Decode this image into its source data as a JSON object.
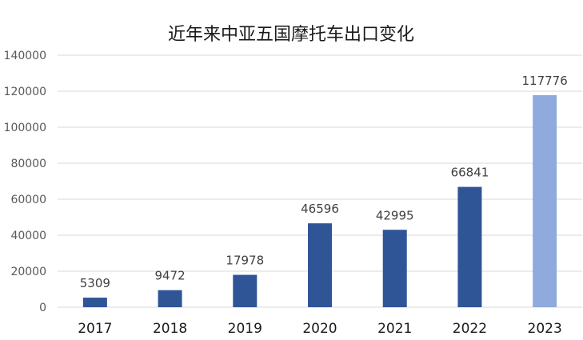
{
  "chart_data": {
    "type": "bar",
    "title": "近年来中亚五国摩托车出口变化",
    "xlabel": "",
    "ylabel": "",
    "categories": [
      "2017",
      "2018",
      "2019",
      "2020",
      "2021",
      "2022",
      "2023"
    ],
    "values": [
      5309,
      9472,
      17978,
      46596,
      42995,
      66841,
      117776
    ],
    "data_labels": [
      "5309",
      "9472",
      "17978",
      "46596",
      "42995",
      "66841",
      "117776"
    ],
    "ylim": [
      0,
      140000
    ],
    "y_ticks": [
      0,
      20000,
      40000,
      60000,
      80000,
      100000,
      120000,
      140000
    ],
    "y_tick_labels": [
      "0",
      "20000",
      "40000",
      "60000",
      "80000",
      "100000",
      "120000",
      "140000"
    ],
    "grid": true,
    "legend": "none",
    "colors": {
      "bar": "#2f5597",
      "highlight_bar": "#8faadc",
      "gridline": "#d9d9d9"
    },
    "highlight_index": 6
  }
}
